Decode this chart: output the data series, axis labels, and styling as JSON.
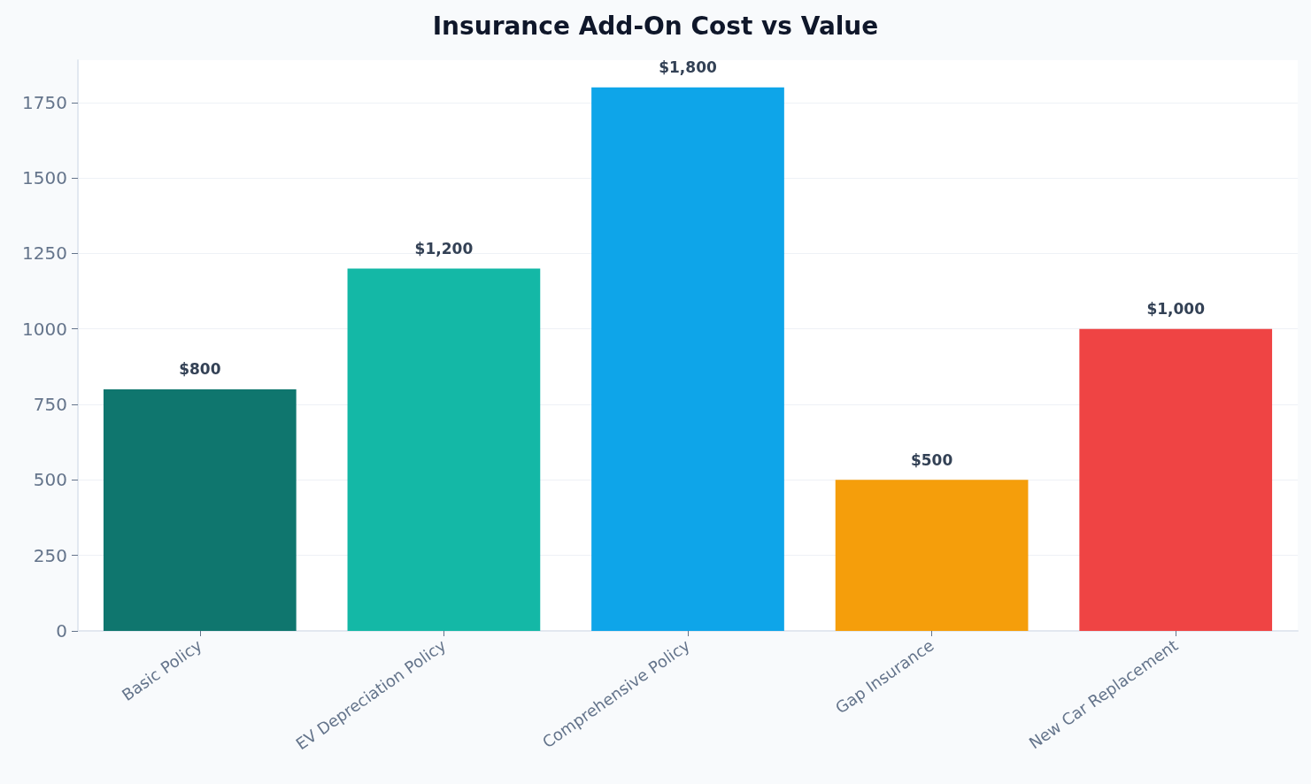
{
  "chart_data": {
    "type": "bar",
    "title": "Insurance Add-On Cost vs Value",
    "categories": [
      "Basic Policy",
      "EV Depreciation Policy",
      "Comprehensive Policy",
      "Gap Insurance",
      "New Car Replacement"
    ],
    "values": [
      800,
      1200,
      1800,
      500,
      1000
    ],
    "colors": [
      "#0f766e",
      "#14b8a6",
      "#0ea5e9",
      "#f59e0b",
      "#ef4444"
    ],
    "value_labels": [
      "$800",
      "$1,200",
      "$1,800",
      "$500",
      "$1,000"
    ],
    "ylim": [
      0,
      1890
    ],
    "yticks": [
      0,
      250,
      500,
      750,
      1000,
      1250,
      1500,
      1750
    ],
    "grid": "y"
  }
}
